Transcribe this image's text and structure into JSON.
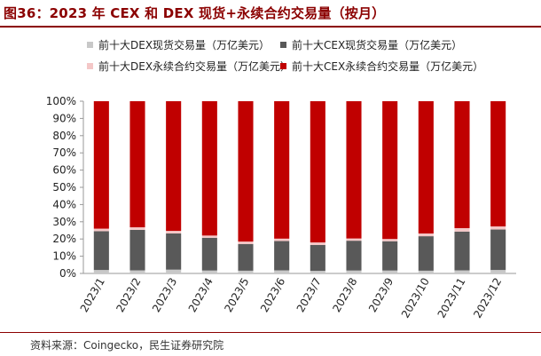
{
  "title": "图36：2023 年 CEX 和 DEX 现货+永续合约交易量（按月）",
  "source": "资料来源：Coingecko，民生证券研究院",
  "colors": {
    "title": "#8b0000",
    "dex_spot": "#c8c8c8",
    "cex_spot": "#595959",
    "dex_perp": "#f4c7c7",
    "cex_perp": "#c00000"
  },
  "legend": [
    {
      "label": "前十大DEX现货交易量（万亿美元）",
      "color": "#c8c8c8"
    },
    {
      "label": "前十大CEX现货交易量（万亿美元）",
      "color": "#595959"
    },
    {
      "label": "前十大DEX永续合约交易量（万亿美元）",
      "color": "#f4c7c7"
    },
    {
      "label": "前十大CEX永续合约交易量（万亿美元）",
      "color": "#c00000"
    }
  ],
  "chart_data": {
    "type": "bar",
    "stacked": true,
    "percent": true,
    "categories": [
      "2023/1",
      "2023/2",
      "2023/3",
      "2023/4",
      "2023/5",
      "2023/6",
      "2023/7",
      "2023/8",
      "2023/9",
      "2023/10",
      "2023/11",
      "2023/12"
    ],
    "series": [
      {
        "name": "前十大DEX现货交易量（万亿美元）",
        "color": "#c8c8c8",
        "values": [
          2.0,
          1.8,
          2.2,
          1.7,
          1.6,
          1.8,
          1.5,
          1.7,
          1.7,
          1.6,
          1.8,
          2.0
        ]
      },
      {
        "name": "前十大CEX现货交易量（万亿美元）",
        "color": "#595959",
        "values": [
          22.5,
          23.5,
          21.0,
          19.0,
          15.5,
          17.0,
          15.0,
          17.3,
          17.0,
          20.0,
          22.5,
          23.5
        ]
      },
      {
        "name": "前十大DEX永续合约交易量（万亿美元）",
        "color": "#f4c7c7",
        "values": [
          1.5,
          1.5,
          1.5,
          1.3,
          1.4,
          1.4,
          1.5,
          1.3,
          1.3,
          1.6,
          2.0,
          1.8
        ]
      },
      {
        "name": "前十大CEX永续合约交易量（万亿美元）",
        "color": "#c00000",
        "values": [
          74.0,
          73.2,
          75.3,
          78.0,
          81.5,
          79.8,
          82.0,
          79.7,
          80.0,
          76.8,
          73.7,
          72.7
        ]
      }
    ],
    "y_ticks": [
      "0%",
      "10%",
      "20%",
      "30%",
      "40%",
      "50%",
      "60%",
      "70%",
      "80%",
      "90%",
      "100%"
    ],
    "ylim": [
      0,
      100
    ],
    "grid": false,
    "legend_position": "top"
  }
}
